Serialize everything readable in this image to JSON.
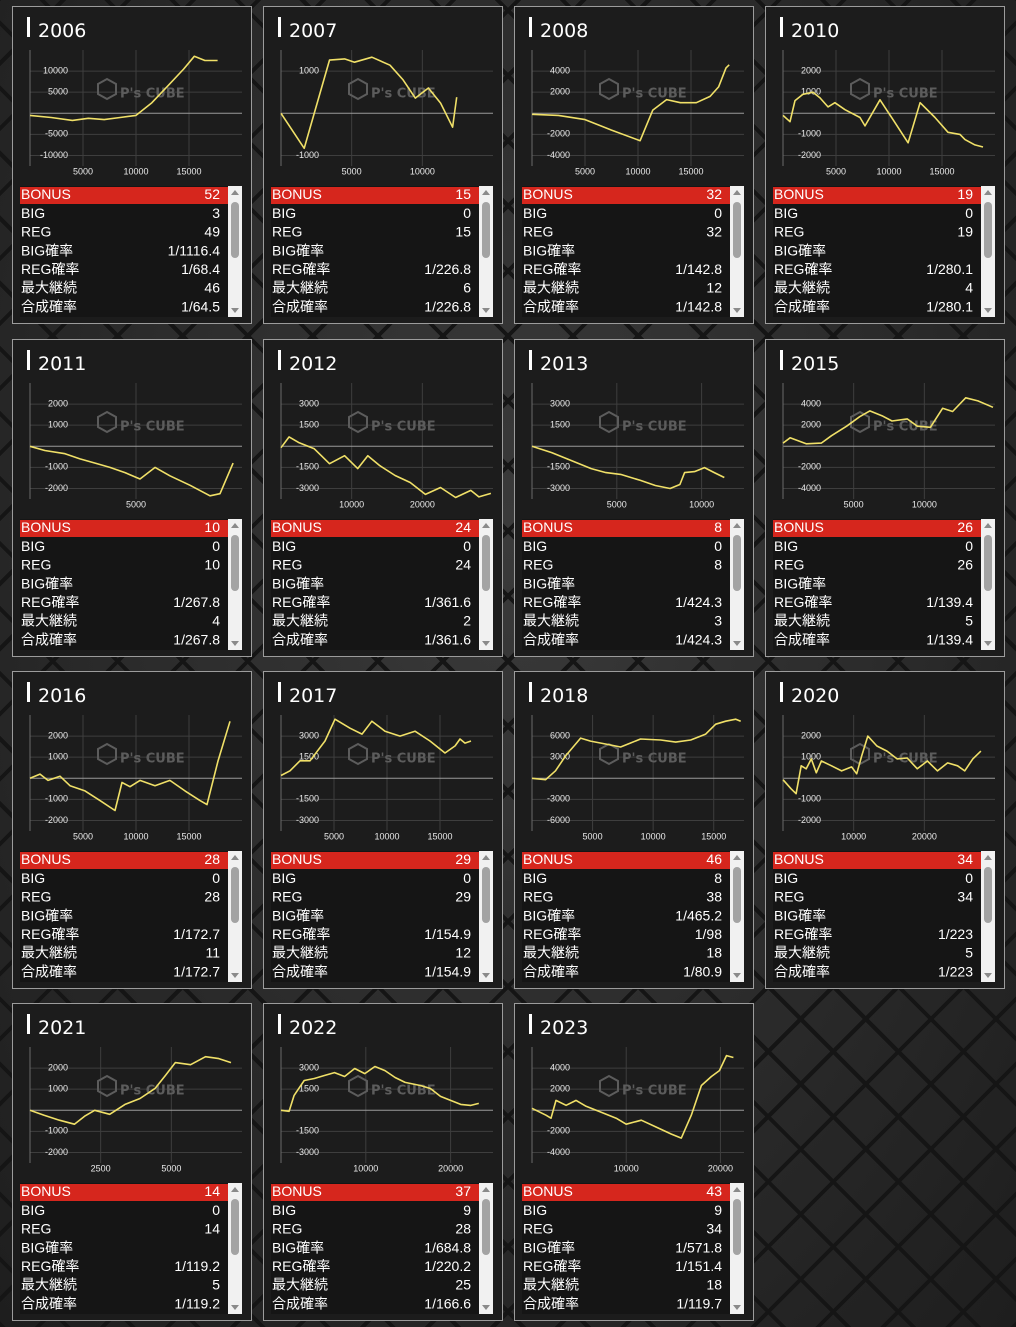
{
  "watermark": "P's CUBE",
  "stat_labels": [
    "BONUS",
    "BIG",
    "REG",
    "BIG確率",
    "REG確率",
    "最大継続",
    "合成確率"
  ],
  "panels": [
    {
      "year": "2006",
      "chart": {
        "type": "line",
        "color": "#f0e068",
        "xlim": [
          0,
          20000
        ],
        "ylim": [
          -12500,
          15000
        ],
        "xticks": [
          5000,
          10000,
          15000
        ],
        "yticks": [
          -10000,
          -5000,
          5000,
          10000
        ],
        "x": [
          0,
          2000,
          4000,
          5500,
          7000,
          8500,
          10000,
          11500,
          13000,
          14500,
          15500,
          16500,
          17700
        ],
        "values": [
          -500,
          -1000,
          -1700,
          -1200,
          -1500,
          -1000,
          -500,
          2500,
          6500,
          10500,
          13500,
          12500,
          12500
        ]
      },
      "stats": [
        52,
        3,
        49,
        "1/1116.4",
        "1/68.4",
        46,
        "1/64.5"
      ]
    },
    {
      "year": "2007",
      "chart": {
        "type": "line",
        "color": "#f0e068",
        "xlim": [
          0,
          15000
        ],
        "ylim": [
          -1250,
          1500
        ],
        "xticks": [
          5000,
          10000
        ],
        "yticks": [
          -1000,
          1000
        ],
        "x": [
          0,
          1640,
          3430,
          4500,
          5200,
          6430,
          7710,
          8640,
          9500,
          10430,
          11290,
          12140,
          12430
        ],
        "values": [
          0,
          -830,
          1260,
          1290,
          1210,
          1330,
          1140,
          790,
          360,
          600,
          240,
          -330,
          380
        ]
      },
      "stats": [
        15,
        0,
        15,
        null,
        "1/226.8",
        6,
        "1/226.8"
      ]
    },
    {
      "year": "2008",
      "chart": {
        "type": "line",
        "color": "#f0e068",
        "xlim": [
          0,
          20000
        ],
        "ylim": [
          -5000,
          6000
        ],
        "xticks": [
          5000,
          10000,
          15000
        ],
        "yticks": [
          -4000,
          -2000,
          2000,
          4000
        ],
        "x": [
          0,
          2500,
          5000,
          7500,
          10200,
          11400,
          12700,
          14000,
          15500,
          16800,
          17600,
          18300,
          18600
        ],
        "values": [
          -100,
          -200,
          -600,
          -1600,
          -2600,
          300,
          1300,
          1000,
          1000,
          1600,
          2500,
          4300,
          4600
        ]
      },
      "stats": [
        32,
        0,
        32,
        null,
        "1/142.8",
        12,
        "1/142.8"
      ]
    },
    {
      "year": "2010",
      "chart": {
        "type": "line",
        "color": "#f0e068",
        "xlim": [
          0,
          20000
        ],
        "ylim": [
          -2500,
          3000
        ],
        "xticks": [
          5000,
          10000,
          15000
        ],
        "yticks": [
          -2000,
          -1000,
          1000,
          2000
        ],
        "x": [
          0,
          660,
          1130,
          1890,
          2830,
          3490,
          4250,
          4900,
          5850,
          7260,
          7740,
          9150,
          10380,
          11800,
          12930,
          14340,
          15570,
          16700,
          17170,
          18100,
          18870
        ],
        "values": [
          -100,
          -400,
          600,
          900,
          1000,
          730,
          300,
          500,
          170,
          -200,
          -600,
          640,
          -300,
          -1400,
          500,
          -200,
          -900,
          -1000,
          -1250,
          -1500,
          -1600
        ]
      },
      "stats": [
        19,
        0,
        19,
        null,
        "1/280.1",
        4,
        "1/280.1"
      ]
    },
    {
      "year": "2011",
      "chart": {
        "type": "line",
        "color": "#f0e068",
        "xlim": [
          0,
          10000
        ],
        "ylim": [
          -2500,
          3000
        ],
        "xticks": [
          5000
        ],
        "yticks": [
          -2000,
          -1000,
          1000,
          2000
        ],
        "x": [
          0,
          700,
          1650,
          2360,
          3070,
          3770,
          4480,
          5190,
          5900,
          6600,
          7550,
          8490,
          8960,
          9580
        ],
        "values": [
          0,
          -200,
          -350,
          -600,
          -800,
          -1000,
          -1250,
          -1550,
          -1000,
          -1400,
          -1850,
          -2350,
          -2250,
          -800
        ]
      },
      "stats": [
        10,
        0,
        10,
        null,
        "1/267.8",
        4,
        "1/267.8"
      ]
    },
    {
      "year": "2012",
      "chart": {
        "type": "line",
        "color": "#f0e068",
        "xlim": [
          0,
          30000
        ],
        "ylim": [
          -3750,
          4500
        ],
        "xticks": [
          10000,
          20000
        ],
        "yticks": [
          -3000,
          -1500,
          1500,
          3000
        ],
        "x": [
          0,
          1140,
          2570,
          4710,
          6860,
          9000,
          10860,
          12290,
          14000,
          16140,
          18290,
          20430,
          22570,
          24710,
          26860,
          28000,
          29700
        ],
        "values": [
          -100,
          670,
          250,
          -180,
          -1240,
          -670,
          -1590,
          -670,
          -1380,
          -2080,
          -2580,
          -3420,
          -2930,
          -3640,
          -3140,
          -3600,
          -3350
        ]
      },
      "stats": [
        24,
        0,
        24,
        null,
        "1/361.6",
        2,
        "1/361.6"
      ]
    },
    {
      "year": "2013",
      "chart": {
        "type": "line",
        "color": "#f0e068",
        "xlim": [
          0,
          12500
        ],
        "ylim": [
          -3750,
          4500
        ],
        "xticks": [
          5000,
          10000
        ],
        "yticks": [
          -3000,
          -1500,
          1500,
          3000
        ],
        "x": [
          0,
          1160,
          2330,
          3490,
          4360,
          5230,
          6400,
          7270,
          8140,
          8720,
          9000,
          9590,
          10170,
          10750,
          11340
        ],
        "values": [
          0,
          -450,
          -1020,
          -1590,
          -1870,
          -2000,
          -2430,
          -2790,
          -3000,
          -2720,
          -1870,
          -1800,
          -1520,
          -1870,
          -2220
        ]
      },
      "stats": [
        8,
        0,
        8,
        null,
        "1/424.3",
        3,
        "1/424.3"
      ]
    },
    {
      "year": "2015",
      "chart": {
        "type": "line",
        "color": "#f0e068",
        "xlim": [
          0,
          15000
        ],
        "ylim": [
          -5000,
          6000
        ],
        "xticks": [
          5000,
          10000
        ],
        "yticks": [
          -4000,
          -2000,
          2000,
          4000
        ],
        "x": [
          0,
          500,
          1640,
          2710,
          3430,
          4500,
          5430,
          6140,
          7000,
          7710,
          8790,
          9500,
          10430,
          11290,
          12000,
          12930,
          13790,
          14860
        ],
        "values": [
          300,
          800,
          230,
          300,
          1000,
          1900,
          2800,
          3350,
          2900,
          2400,
          2600,
          1900,
          1800,
          3600,
          3300,
          4600,
          4300,
          3700
        ]
      },
      "stats": [
        26,
        0,
        26,
        null,
        "1/139.4",
        5,
        "1/139.4"
      ]
    },
    {
      "year": "2016",
      "chart": {
        "type": "line",
        "color": "#f0e068",
        "xlim": [
          0,
          20000
        ],
        "ylim": [
          -2500,
          3000
        ],
        "xticks": [
          5000,
          10000,
          15000
        ],
        "yticks": [
          -2000,
          -1000,
          1000,
          2000
        ],
        "x": [
          0,
          940,
          1700,
          2830,
          3770,
          5190,
          6600,
          8020,
          8680,
          9430,
          10380,
          11790,
          13200,
          14620,
          16040,
          16700,
          17740,
          18870
        ],
        "values": [
          0,
          200,
          -100,
          100,
          -350,
          -600,
          -1060,
          -1530,
          -200,
          -400,
          -100,
          -350,
          -100,
          -600,
          -1060,
          -1250,
          820,
          2700
        ]
      },
      "stats": [
        28,
        0,
        28,
        null,
        "1/172.7",
        11,
        "1/172.7"
      ]
    },
    {
      "year": "2017",
      "chart": {
        "type": "line",
        "color": "#f0e068",
        "xlim": [
          0,
          20000
        ],
        "ylim": [
          -3750,
          4500
        ],
        "xticks": [
          5000,
          10000,
          15000
        ],
        "yticks": [
          -3000,
          -1500,
          1500,
          3000
        ],
        "x": [
          0,
          850,
          1790,
          2740,
          4150,
          5090,
          6510,
          7640,
          8580,
          9810,
          11230,
          12640,
          14060,
          15470,
          16420,
          16890,
          17360,
          17920
        ],
        "values": [
          200,
          530,
          1240,
          1240,
          2650,
          4200,
          3560,
          3140,
          4060,
          3350,
          3000,
          3350,
          2650,
          1800,
          2300,
          2790,
          2500,
          2650
        ]
      },
      "stats": [
        29,
        0,
        29,
        null,
        "1/154.9",
        12,
        "1/154.9"
      ]
    },
    {
      "year": "2018",
      "chart": {
        "type": "line",
        "color": "#f0e068",
        "xlim": [
          0,
          17500
        ],
        "ylim": [
          -7500,
          9000
        ],
        "xticks": [
          5000,
          10000,
          15000
        ],
        "yticks": [
          -6000,
          -3000,
          3000,
          6000
        ],
        "x": [
          0,
          1120,
          1940,
          2770,
          4010,
          4830,
          6070,
          7310,
          8140,
          8960,
          10620,
          11860,
          13100,
          14340,
          15160,
          15990,
          16820,
          17230
        ],
        "values": [
          0,
          -200,
          1060,
          3180,
          5720,
          5290,
          4870,
          4450,
          5020,
          5580,
          5440,
          5150,
          5440,
          6280,
          7690,
          8120,
          8400,
          8120
        ]
      },
      "stats": [
        46,
        8,
        38,
        "1/465.2",
        "1/98",
        18,
        "1/80.9"
      ]
    },
    {
      "year": "2020",
      "chart": {
        "type": "line",
        "color": "#f0e068",
        "xlim": [
          0,
          30000
        ],
        "ylim": [
          -2500,
          3000
        ],
        "xticks": [
          10000,
          20000
        ],
        "yticks": [
          -2000,
          -1000,
          1000,
          2000
        ],
        "x": [
          0,
          1140,
          1860,
          2570,
          3290,
          4000,
          4710,
          5430,
          6860,
          8290,
          9710,
          10430,
          11140,
          12000,
          13290,
          14710,
          16140,
          17570,
          19000,
          20430,
          21860,
          23290,
          24710,
          25710,
          26860,
          28000
        ],
        "values": [
          -70,
          -500,
          -730,
          590,
          450,
          920,
          260,
          820,
          590,
          350,
          540,
          210,
          1060,
          2000,
          1530,
          1290,
          920,
          960,
          450,
          820,
          350,
          730,
          590,
          350,
          920,
          1290
        ]
      },
      "stats": [
        34,
        0,
        34,
        null,
        "1/223",
        5,
        "1/223"
      ]
    },
    {
      "year": "2021",
      "chart": {
        "type": "line",
        "color": "#f0e068",
        "xlim": [
          0,
          7500
        ],
        "ylim": [
          -2500,
          3000
        ],
        "xticks": [
          2500,
          5000
        ],
        "yticks": [
          -2000,
          -1000,
          1000,
          2000
        ],
        "x": [
          0,
          500,
          1040,
          1570,
          1930,
          2290,
          2820,
          3360,
          3890,
          4430,
          4790,
          5140,
          5680,
          6210,
          6680,
          7110
        ],
        "values": [
          0,
          -240,
          -470,
          -660,
          -280,
          0,
          -190,
          280,
          560,
          1040,
          1650,
          2260,
          2160,
          2540,
          2450,
          2260
        ]
      },
      "stats": [
        14,
        0,
        14,
        null,
        "1/119.2",
        5,
        "1/119.2"
      ]
    },
    {
      "year": "2022",
      "chart": {
        "type": "line",
        "color": "#f0e068",
        "xlim": [
          0,
          25000
        ],
        "ylim": [
          -3750,
          4500
        ],
        "xticks": [
          10000,
          20000
        ],
        "yticks": [
          -3000,
          -1500,
          1500,
          3000
        ],
        "x": [
          0,
          950,
          1550,
          2740,
          3930,
          5120,
          6310,
          7500,
          8690,
          9880,
          11070,
          12260,
          13450,
          14640,
          16430,
          17620,
          18810,
          20000,
          21190,
          22380,
          23330
        ],
        "values": [
          0,
          -70,
          1060,
          2120,
          2260,
          2470,
          2680,
          2400,
          2970,
          2610,
          3110,
          2820,
          2330,
          1980,
          1760,
          1550,
          990,
          700,
          420,
          350,
          490
        ]
      },
      "stats": [
        37,
        9,
        28,
        "1/684.8",
        "1/220.2",
        25,
        "1/166.6"
      ]
    },
    {
      "year": "2023",
      "chart": {
        "type": "line",
        "color": "#f0e068",
        "xlim": [
          0,
          22500
        ],
        "ylim": [
          -5000,
          6000
        ],
        "xticks": [
          10000,
          20000
        ],
        "yticks": [
          -4000,
          -2000,
          2000,
          4000
        ],
        "x": [
          0,
          1490,
          2020,
          2550,
          3620,
          4680,
          5740,
          7340,
          8940,
          10000,
          11600,
          13190,
          14790,
          15850,
          16910,
          17980,
          19040,
          19890,
          20640,
          21380
        ],
        "values": [
          190,
          -470,
          -750,
          940,
          470,
          940,
          380,
          -190,
          -750,
          -1320,
          -940,
          -1600,
          -2260,
          -2640,
          -470,
          2350,
          3200,
          3760,
          5180,
          5000
        ]
      },
      "stats": [
        43,
        9,
        34,
        "1/571.8",
        "1/151.4",
        18,
        "1/119.7"
      ]
    }
  ]
}
